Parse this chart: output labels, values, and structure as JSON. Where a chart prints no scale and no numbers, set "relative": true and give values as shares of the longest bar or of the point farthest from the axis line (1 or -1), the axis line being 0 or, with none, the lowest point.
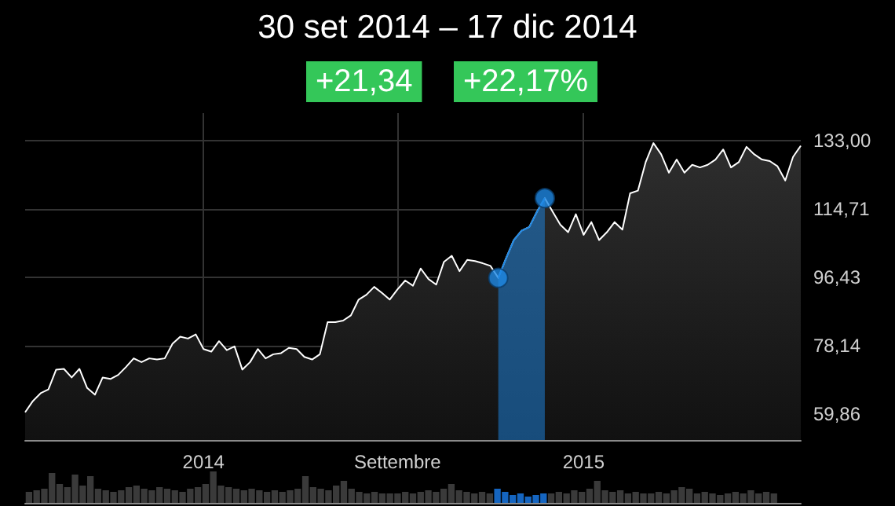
{
  "chart_data": [
    {
      "type": "area",
      "title": "30 set 2014 – 17 dic 2014",
      "annotations": [
        "+21,34",
        "+22,17%"
      ],
      "categories": [
        null,
        null,
        null,
        null,
        null,
        null,
        null,
        null,
        null,
        null,
        null,
        null,
        null,
        null,
        null,
        null,
        null,
        null,
        null,
        null,
        null,
        null,
        null,
        "2014",
        null,
        null,
        null,
        null,
        null,
        null,
        null,
        null,
        null,
        null,
        null,
        null,
        null,
        null,
        null,
        null,
        null,
        null,
        null,
        null,
        null,
        null,
        null,
        null,
        "Settembre",
        null,
        null,
        null,
        null,
        null,
        null,
        null,
        null,
        null,
        null,
        null,
        null,
        null,
        null,
        null,
        null,
        null,
        null,
        null,
        null,
        null,
        null,
        null,
        "2015",
        null,
        null,
        null,
        null,
        null,
        null,
        null,
        null,
        null,
        null,
        null,
        null,
        null,
        null,
        null,
        null,
        null,
        null,
        null,
        null,
        null,
        null,
        null,
        null,
        null,
        null,
        null,
        null
      ],
      "series": [
        {
          "color": "#ffffff",
          "values": [
            60.4,
            63.4,
            65.5,
            66.5,
            71.8,
            72.0,
            69.7,
            72.0,
            66.9,
            65.1,
            69.7,
            69.3,
            70.4,
            72.5,
            74.8,
            73.8,
            74.8,
            74.5,
            74.8,
            78.7,
            80.6,
            80.1,
            81.2,
            77.3,
            76.6,
            79.4,
            77.0,
            78.0,
            71.8,
            73.8,
            77.3,
            74.8,
            75.9,
            76.2,
            77.6,
            77.3,
            75.2,
            74.5,
            75.9,
            84.5,
            84.5,
            84.9,
            86.3,
            90.5,
            91.8,
            93.9,
            92.3,
            90.5,
            93.2,
            95.6,
            94.2,
            98.8,
            96.0,
            94.5,
            100.6,
            102.2,
            98.1,
            101.1,
            100.8,
            100.2,
            99.5,
            96.3,
            101.5,
            106.4,
            108.9,
            109.9,
            114.0,
            117.6,
            114.0,
            110.5,
            108.5,
            113.3,
            107.8,
            111.2,
            106.4,
            108.5,
            111.2,
            109.2,
            118.9,
            119.6,
            127.2,
            132.3,
            129.3,
            124.4,
            127.9,
            124.4,
            126.5,
            125.8,
            126.5,
            127.9,
            130.6,
            125.8,
            127.2,
            131.3,
            129.3,
            127.9,
            127.5,
            126.1,
            122.3,
            128.6,
            131.6
          ]
        },
        {
          "color": "#1e88e5",
          "values": [
            null,
            null,
            null,
            null,
            null,
            null,
            null,
            null,
            null,
            null,
            null,
            null,
            null,
            null,
            null,
            null,
            null,
            null,
            null,
            null,
            null,
            null,
            null,
            null,
            null,
            null,
            null,
            null,
            null,
            null,
            null,
            null,
            null,
            null,
            null,
            null,
            null,
            null,
            null,
            null,
            null,
            null,
            null,
            null,
            null,
            null,
            null,
            null,
            null,
            null,
            null,
            null,
            null,
            null,
            null,
            null,
            null,
            null,
            null,
            null,
            null,
            96.3,
            101.5,
            106.4,
            108.9,
            109.9,
            114.0,
            117.6,
            null,
            null,
            null,
            null,
            null,
            null,
            null,
            null,
            null,
            null,
            null,
            null,
            null,
            null,
            null,
            null,
            null,
            null,
            null,
            null,
            null,
            null,
            null,
            null,
            null,
            null,
            null,
            null,
            null,
            null,
            null,
            null,
            null
          ]
        },
        {
          "type": "scatter",
          "color": "#1e88e5",
          "marker": "circle",
          "values": [
            null,
            null,
            null,
            null,
            null,
            null,
            null,
            null,
            null,
            null,
            null,
            null,
            null,
            null,
            null,
            null,
            null,
            null,
            null,
            null,
            null,
            null,
            null,
            null,
            null,
            null,
            null,
            null,
            null,
            null,
            null,
            null,
            null,
            null,
            null,
            null,
            null,
            null,
            null,
            null,
            null,
            null,
            null,
            null,
            null,
            null,
            null,
            null,
            null,
            null,
            null,
            null,
            null,
            null,
            null,
            null,
            null,
            null,
            null,
            null,
            null,
            96.3,
            null,
            null,
            null,
            null,
            null,
            117.6,
            null,
            null,
            null,
            null,
            null,
            null,
            null,
            null,
            null,
            null,
            null,
            null,
            null,
            null,
            null,
            null,
            null,
            null,
            null,
            null,
            null,
            null,
            null,
            null,
            null,
            null,
            null,
            null,
            null,
            null,
            null,
            null,
            null
          ]
        }
      ],
      "ylim": [
        53,
        140.3
      ],
      "yticks": [
        {
          "value": 59.86,
          "label": "59,86"
        },
        {
          "value": 78.14,
          "label": "78,14"
        },
        {
          "value": 96.43,
          "label": "96,43"
        },
        {
          "value": 114.71,
          "label": "114,71"
        },
        {
          "value": 133.0,
          "label": "133,00"
        }
      ],
      "grid": true,
      "marker": "none"
    },
    {
      "type": "bar",
      "relative": true,
      "categories": [
        null,
        null,
        null,
        null,
        null,
        null,
        null,
        null,
        null,
        null,
        null,
        null,
        null,
        null,
        null,
        null,
        null,
        null,
        null,
        null,
        null,
        null,
        null,
        null,
        null,
        null,
        null,
        null,
        null,
        null,
        null,
        null,
        null,
        null,
        null,
        null,
        null,
        null,
        null,
        null,
        null,
        null,
        null,
        null,
        null,
        null,
        null,
        null,
        null,
        null,
        null,
        null,
        null,
        null,
        null,
        null,
        null,
        null,
        null,
        null,
        null,
        null,
        null,
        null,
        null,
        null,
        null,
        null,
        null,
        null,
        null,
        null,
        null,
        null,
        null,
        null,
        null,
        null,
        null,
        null,
        null,
        null,
        null,
        null,
        null,
        null,
        null,
        null,
        null,
        null,
        null,
        null,
        null,
        null,
        null,
        null,
        null,
        null,
        null,
        null,
        null
      ],
      "values": [
        0.35,
        0.4,
        0.45,
        0.95,
        0.6,
        0.5,
        0.9,
        0.55,
        0.85,
        0.45,
        0.4,
        0.35,
        0.4,
        0.5,
        0.55,
        0.45,
        0.4,
        0.5,
        0.45,
        0.4,
        0.35,
        0.45,
        0.5,
        0.6,
        1.0,
        0.55,
        0.5,
        0.45,
        0.4,
        0.45,
        0.4,
        0.35,
        0.4,
        0.35,
        0.4,
        0.45,
        0.85,
        0.5,
        0.45,
        0.4,
        0.55,
        0.7,
        0.45,
        0.35,
        0.3,
        0.35,
        0.3,
        0.3,
        0.3,
        0.35,
        0.3,
        0.35,
        0.4,
        0.35,
        0.45,
        0.6,
        0.4,
        0.35,
        0.3,
        0.35,
        0.3,
        0.45,
        0.35,
        0.25,
        0.3,
        0.2,
        0.25,
        0.3,
        0.3,
        0.35,
        0.3,
        0.4,
        0.35,
        0.45,
        0.7,
        0.4,
        0.35,
        0.4,
        0.3,
        0.35,
        0.3,
        0.3,
        0.35,
        0.3,
        0.4,
        0.5,
        0.45,
        0.3,
        0.35,
        0.3,
        0.25,
        0.3,
        0.35,
        0.3,
        0.4,
        0.3,
        0.35,
        0.3,
        null,
        null,
        null
      ],
      "colors": [
        "#3a3a3a",
        "#3a3a3a",
        "#3a3a3a",
        "#3a3a3a",
        "#3a3a3a",
        "#3a3a3a",
        "#3a3a3a",
        "#3a3a3a",
        "#3a3a3a",
        "#3a3a3a",
        "#3a3a3a",
        "#3a3a3a",
        "#3a3a3a",
        "#3a3a3a",
        "#3a3a3a",
        "#3a3a3a",
        "#3a3a3a",
        "#3a3a3a",
        "#3a3a3a",
        "#3a3a3a",
        "#3a3a3a",
        "#3a3a3a",
        "#3a3a3a",
        "#3a3a3a",
        "#3a3a3a",
        "#3a3a3a",
        "#3a3a3a",
        "#3a3a3a",
        "#3a3a3a",
        "#3a3a3a",
        "#3a3a3a",
        "#3a3a3a",
        "#3a3a3a",
        "#3a3a3a",
        "#3a3a3a",
        "#3a3a3a",
        "#3a3a3a",
        "#3a3a3a",
        "#3a3a3a",
        "#3a3a3a",
        "#3a3a3a",
        "#3a3a3a",
        "#3a3a3a",
        "#3a3a3a",
        "#3a3a3a",
        "#3a3a3a",
        "#3a3a3a",
        "#3a3a3a",
        "#3a3a3a",
        "#3a3a3a",
        "#3a3a3a",
        "#3a3a3a",
        "#3a3a3a",
        "#3a3a3a",
        "#3a3a3a",
        "#3a3a3a",
        "#3a3a3a",
        "#3a3a3a",
        "#3a3a3a",
        "#3a3a3a",
        "#3a3a3a",
        "#1565c0",
        "#1565c0",
        "#1565c0",
        "#1565c0",
        "#1565c0",
        "#1565c0",
        "#1565c0",
        "#3a3a3a",
        "#3a3a3a",
        "#3a3a3a",
        "#3a3a3a",
        "#3a3a3a",
        "#3a3a3a",
        "#3a3a3a",
        "#3a3a3a",
        "#3a3a3a",
        "#3a3a3a",
        "#3a3a3a",
        "#3a3a3a",
        "#3a3a3a",
        "#3a3a3a",
        "#3a3a3a",
        "#3a3a3a",
        "#3a3a3a",
        "#3a3a3a",
        "#3a3a3a",
        "#3a3a3a",
        "#3a3a3a",
        "#3a3a3a",
        "#3a3a3a",
        "#3a3a3a",
        "#3a3a3a",
        "#3a3a3a",
        "#3a3a3a",
        "#3a3a3a",
        "#3a3a3a",
        "#3a3a3a",
        "#3a3a3a",
        "#3a3a3a",
        "#3a3a3a"
      ]
    }
  ]
}
